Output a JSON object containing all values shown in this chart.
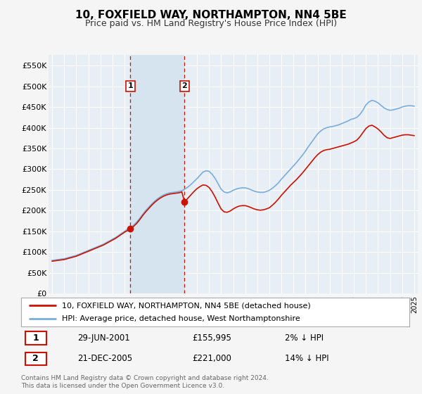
{
  "title": "10, FOXFIELD WAY, NORTHAMPTON, NN4 5BE",
  "subtitle": "Price paid vs. HM Land Registry's House Price Index (HPI)",
  "ylabel_ticks": [
    "£0",
    "£50K",
    "£100K",
    "£150K",
    "£200K",
    "£250K",
    "£300K",
    "£350K",
    "£400K",
    "£450K",
    "£500K",
    "£550K"
  ],
  "ytick_values": [
    0,
    50000,
    100000,
    150000,
    200000,
    250000,
    300000,
    350000,
    400000,
    450000,
    500000,
    550000
  ],
  "xlim": [
    1994.7,
    2025.3
  ],
  "ylim": [
    0,
    575000
  ],
  "background_color": "#f5f5f5",
  "plot_bg_color": "#e8eef5",
  "grid_color": "#ffffff",
  "transaction1": {
    "date": "29-JUN-2001",
    "price": 155995,
    "pct": "2%",
    "dir": "↓",
    "x": 2001.48,
    "label": "1"
  },
  "transaction2": {
    "date": "21-DEC-2005",
    "price": 221000,
    "pct": "14%",
    "dir": "↓",
    "x": 2005.97,
    "label": "2"
  },
  "legend_line1": "10, FOXFIELD WAY, NORTHAMPTON, NN4 5BE (detached house)",
  "legend_line2": "HPI: Average price, detached house, West Northamptonshire",
  "footer": "Contains HM Land Registry data © Crown copyright and database right 2024.\nThis data is licensed under the Open Government Licence v3.0.",
  "hpi_color": "#7aaddb",
  "price_color": "#cc1100",
  "vline_color": "#cc1100",
  "highlight_color": "#d6e4f0",
  "years_hpi": [
    1995,
    1995.25,
    1995.5,
    1995.75,
    1996,
    1996.25,
    1996.5,
    1996.75,
    1997,
    1997.25,
    1997.5,
    1997.75,
    1998,
    1998.25,
    1998.5,
    1998.75,
    1999,
    1999.25,
    1999.5,
    1999.75,
    2000,
    2000.25,
    2000.5,
    2000.75,
    2001,
    2001.25,
    2001.5,
    2001.75,
    2002,
    2002.25,
    2002.5,
    2002.75,
    2003,
    2003.25,
    2003.5,
    2003.75,
    2004,
    2004.25,
    2004.5,
    2004.75,
    2005,
    2005.25,
    2005.5,
    2005.75,
    2006,
    2006.25,
    2006.5,
    2006.75,
    2007,
    2007.25,
    2007.5,
    2007.75,
    2008,
    2008.25,
    2008.5,
    2008.75,
    2009,
    2009.25,
    2009.5,
    2009.75,
    2010,
    2010.25,
    2010.5,
    2010.75,
    2011,
    2011.25,
    2011.5,
    2011.75,
    2012,
    2012.25,
    2012.5,
    2012.75,
    2013,
    2013.25,
    2013.5,
    2013.75,
    2014,
    2014.25,
    2014.5,
    2014.75,
    2015,
    2015.25,
    2015.5,
    2015.75,
    2016,
    2016.25,
    2016.5,
    2016.75,
    2017,
    2017.25,
    2017.5,
    2017.75,
    2018,
    2018.25,
    2018.5,
    2018.75,
    2019,
    2019.25,
    2019.5,
    2019.75,
    2020,
    2020.25,
    2020.5,
    2020.75,
    2021,
    2021.25,
    2021.5,
    2021.75,
    2022,
    2022.25,
    2022.5,
    2022.75,
    2023,
    2023.25,
    2023.5,
    2023.75,
    2024,
    2024.25,
    2024.5,
    2024.75,
    2025
  ],
  "hpi_values": [
    80000,
    81000,
    82000,
    83000,
    84000,
    86000,
    88000,
    90000,
    92000,
    95000,
    98000,
    101000,
    104000,
    107000,
    110000,
    113000,
    116000,
    119000,
    123000,
    127000,
    131000,
    135000,
    140000,
    145000,
    150000,
    155000,
    160000,
    165000,
    172000,
    181000,
    191000,
    200000,
    208000,
    216000,
    223000,
    229000,
    234000,
    238000,
    241000,
    243000,
    244000,
    245000,
    246000,
    248000,
    252000,
    257000,
    263000,
    270000,
    277000,
    285000,
    293000,
    296000,
    295000,
    288000,
    278000,
    265000,
    252000,
    245000,
    243000,
    245000,
    249000,
    252000,
    254000,
    255000,
    255000,
    253000,
    250000,
    247000,
    245000,
    244000,
    244000,
    246000,
    249000,
    254000,
    260000,
    267000,
    276000,
    284000,
    292000,
    300000,
    308000,
    316000,
    325000,
    334000,
    344000,
    355000,
    365000,
    375000,
    385000,
    392000,
    397000,
    400000,
    402000,
    403000,
    405000,
    407000,
    410000,
    413000,
    416000,
    420000,
    422000,
    425000,
    432000,
    442000,
    455000,
    462000,
    466000,
    464000,
    460000,
    454000,
    448000,
    444000,
    442000,
    443000,
    445000,
    447000,
    450000,
    452000,
    453000,
    453000,
    452000
  ],
  "years_price": [
    1995,
    1995.25,
    1995.5,
    1995.75,
    1996,
    1996.25,
    1996.5,
    1996.75,
    1997,
    1997.25,
    1997.5,
    1997.75,
    1998,
    1998.25,
    1998.5,
    1998.75,
    1999,
    1999.25,
    1999.5,
    1999.75,
    2000,
    2000.25,
    2000.5,
    2000.75,
    2001,
    2001.25,
    2001.48,
    2001.75,
    2002,
    2002.25,
    2002.5,
    2002.75,
    2003,
    2003.25,
    2003.5,
    2003.75,
    2004,
    2004.25,
    2004.5,
    2004.75,
    2005,
    2005.25,
    2005.5,
    2005.75,
    2005.97,
    2006.25,
    2006.5,
    2006.75,
    2007,
    2007.25,
    2007.5,
    2007.75,
    2008,
    2008.25,
    2008.5,
    2008.75,
    2009,
    2009.25,
    2009.5,
    2009.75,
    2010,
    2010.25,
    2010.5,
    2010.75,
    2011,
    2011.25,
    2011.5,
    2011.75,
    2012,
    2012.25,
    2012.5,
    2012.75,
    2013,
    2013.25,
    2013.5,
    2013.75,
    2014,
    2014.25,
    2014.5,
    2014.75,
    2015,
    2015.25,
    2015.5,
    2015.75,
    2016,
    2016.25,
    2016.5,
    2016.75,
    2017,
    2017.25,
    2017.5,
    2017.75,
    2018,
    2018.25,
    2018.5,
    2018.75,
    2019,
    2019.25,
    2019.5,
    2019.75,
    2020,
    2020.25,
    2020.5,
    2020.75,
    2021,
    2021.25,
    2021.5,
    2021.75,
    2022,
    2022.25,
    2022.5,
    2022.75,
    2023,
    2023.25,
    2023.5,
    2023.75,
    2024,
    2024.25,
    2024.5,
    2024.75,
    2025
  ],
  "price_values": [
    78000,
    79000,
    80000,
    81000,
    82000,
    84000,
    86000,
    88000,
    90000,
    93000,
    96000,
    99000,
    102000,
    105000,
    108000,
    111000,
    114000,
    117000,
    121000,
    125000,
    129000,
    133000,
    138000,
    143000,
    148000,
    152000,
    155995,
    162000,
    169000,
    178000,
    188000,
    197000,
    205000,
    213000,
    220000,
    226000,
    231000,
    235000,
    238000,
    240000,
    241000,
    242000,
    243000,
    245000,
    221000,
    230000,
    238000,
    246000,
    253000,
    258000,
    262000,
    261000,
    256000,
    246000,
    233000,
    218000,
    204000,
    197000,
    196000,
    199000,
    204000,
    208000,
    211000,
    212000,
    212000,
    210000,
    207000,
    204000,
    202000,
    201000,
    202000,
    204000,
    207000,
    213000,
    220000,
    228000,
    237000,
    245000,
    253000,
    261000,
    268000,
    275000,
    283000,
    291000,
    300000,
    309000,
    318000,
    327000,
    335000,
    341000,
    345000,
    347000,
    348000,
    350000,
    352000,
    354000,
    356000,
    358000,
    360000,
    363000,
    366000,
    370000,
    378000,
    388000,
    398000,
    404000,
    406000,
    402000,
    397000,
    390000,
    382000,
    376000,
    374000,
    376000,
    378000,
    380000,
    382000,
    383000,
    383000,
    382000,
    381000
  ]
}
